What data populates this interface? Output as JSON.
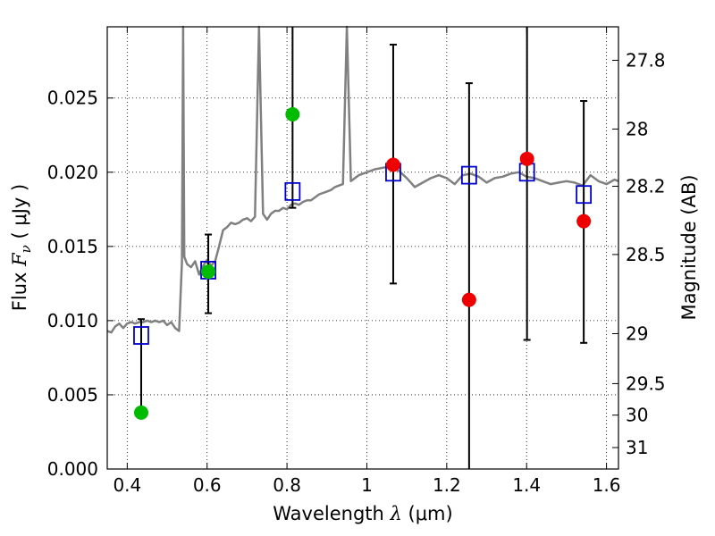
{
  "chart_data": {
    "type": "scatter",
    "xlabel": "Wavelength  λ (μm)",
    "xlabel_parts": {
      "prefix": "Wavelength  ",
      "symbol": "λ",
      "unit": " (μm)"
    },
    "ylabel": "Flux  Fν  ( μJy )",
    "ylabel_parts": {
      "prefix": "Flux  ",
      "symbol": "F",
      "sub": "ν",
      "unit": "  ( μJy )"
    },
    "y2label": "Magnitude (AB)",
    "xlim": [
      0.35,
      1.63
    ],
    "ylim": [
      0.0,
      0.0298
    ],
    "x_ticks": [
      0.4,
      0.6,
      0.8,
      1.0,
      1.2,
      1.4,
      1.6
    ],
    "x_tick_labels": [
      "0.4",
      "0.6",
      "0.8",
      "1",
      "1.2",
      "1.4",
      "1.6"
    ],
    "y_ticks": [
      0.0,
      0.005,
      0.01,
      0.015,
      0.02,
      0.025
    ],
    "y_tick_labels": [
      "0.000",
      "0.005",
      "0.010",
      "0.015",
      "0.020",
      "0.025"
    ],
    "y2_ticks": [
      27.8,
      28,
      28.2,
      28.5,
      29,
      29.5,
      30,
      31
    ],
    "y2_tick_labels": [
      "27.8",
      "28",
      "28.2",
      "28.5",
      "29",
      "29.5",
      "30",
      "31"
    ],
    "grid": true,
    "colors": {
      "spectrum": "#808080",
      "model_squares": "#0000cc",
      "green_points": "#00bb00",
      "red_points": "#ee0000",
      "errorbars": "#000000"
    },
    "series": [
      {
        "kind": "spectrum",
        "x": [
          0.35,
          0.36,
          0.37,
          0.38,
          0.39,
          0.4,
          0.41,
          0.42,
          0.43,
          0.44,
          0.45,
          0.46,
          0.47,
          0.48,
          0.49,
          0.5,
          0.51,
          0.52,
          0.53,
          0.537,
          0.54,
          0.543,
          0.55,
          0.56,
          0.57,
          0.58,
          0.59,
          0.6,
          0.61,
          0.62,
          0.63,
          0.64,
          0.65,
          0.66,
          0.67,
          0.68,
          0.69,
          0.7,
          0.71,
          0.72,
          0.73,
          0.74,
          0.75,
          0.76,
          0.77,
          0.78,
          0.79,
          0.8,
          0.81,
          0.82,
          0.83,
          0.84,
          0.85,
          0.86,
          0.87,
          0.88,
          0.89,
          0.9,
          0.91,
          0.92,
          0.93,
          0.94,
          0.95,
          0.96,
          0.97,
          0.98,
          0.99,
          1.0,
          1.02,
          1.04,
          1.06,
          1.08,
          1.1,
          1.12,
          1.14,
          1.16,
          1.18,
          1.2,
          1.22,
          1.24,
          1.26,
          1.28,
          1.3,
          1.32,
          1.34,
          1.36,
          1.38,
          1.4,
          1.42,
          1.44,
          1.46,
          1.48,
          1.5,
          1.52,
          1.54,
          1.56,
          1.58,
          1.6,
          1.62,
          1.63
        ],
        "y": [
          0.0093,
          0.0092,
          0.0096,
          0.0098,
          0.0095,
          0.0098,
          0.0099,
          0.0098,
          0.0099,
          0.0099,
          0.01,
          0.0099,
          0.01,
          0.0099,
          0.01,
          0.0097,
          0.0099,
          0.0095,
          0.0093,
          0.014,
          0.0298,
          0.0143,
          0.0138,
          0.0136,
          0.014,
          0.0131,
          0.0137,
          0.0141,
          0.0137,
          0.014,
          0.015,
          0.0161,
          0.0163,
          0.0166,
          0.0165,
          0.0166,
          0.0168,
          0.0169,
          0.0167,
          0.017,
          0.0298,
          0.0172,
          0.0168,
          0.0172,
          0.0174,
          0.0174,
          0.0176,
          0.0175,
          0.0178,
          0.0179,
          0.0178,
          0.018,
          0.0181,
          0.0181,
          0.0183,
          0.0185,
          0.0186,
          0.0187,
          0.0188,
          0.019,
          0.0191,
          0.0192,
          0.0298,
          0.0194,
          0.0196,
          0.0198,
          0.0199,
          0.02,
          0.0202,
          0.0203,
          0.0204,
          0.0201,
          0.0196,
          0.019,
          0.0193,
          0.0196,
          0.0198,
          0.0196,
          0.0192,
          0.0198,
          0.0199,
          0.0197,
          0.0193,
          0.0196,
          0.0197,
          0.0199,
          0.02,
          0.0197,
          0.0196,
          0.0194,
          0.0192,
          0.0193,
          0.0194,
          0.0193,
          0.0191,
          0.0198,
          0.0194,
          0.0192,
          0.0195,
          0.0194
        ]
      },
      {
        "kind": "model-squares",
        "x": [
          0.435,
          0.603,
          0.814,
          1.066,
          1.256,
          1.401,
          1.543
        ],
        "y": [
          0.009,
          0.0134,
          0.0187,
          0.02,
          0.0198,
          0.02,
          0.0185
        ]
      },
      {
        "kind": "green-points",
        "x": [
          0.435,
          0.603,
          0.814
        ],
        "y": [
          0.0038,
          0.0133,
          0.0239
        ],
        "yerr_low": [
          0.0038,
          0.0105,
          0.0176
        ],
        "yerr_high": [
          0.0101,
          0.0158,
          0.0298
        ]
      },
      {
        "kind": "red-points",
        "x": [
          1.066,
          1.256,
          1.401,
          1.543
        ],
        "y": [
          0.0205,
          0.0114,
          0.0209,
          0.0167
        ],
        "yerr_low": [
          0.0125,
          0.0,
          0.0087,
          0.0085
        ],
        "yerr_high": [
          0.0286,
          0.026,
          0.0298,
          0.0248
        ]
      }
    ]
  }
}
